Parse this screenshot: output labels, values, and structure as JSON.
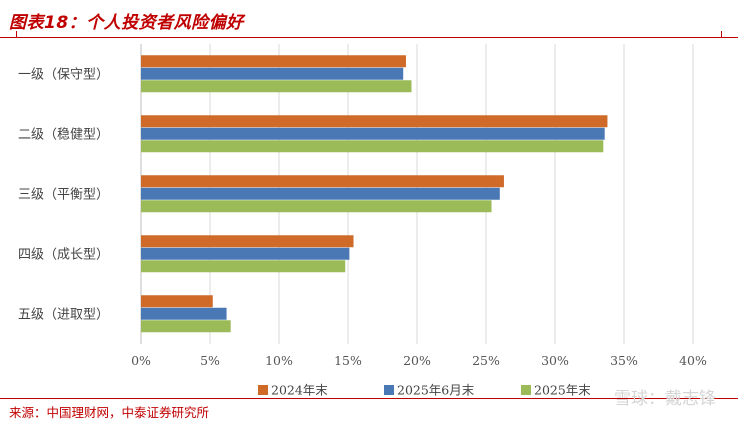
{
  "header": {
    "title": "图表18：个人投资者风险偏好"
  },
  "footer": {
    "source": "来源：中国理财网，中泰证券研究所",
    "watermark": "雪球：戴志锋"
  },
  "colors": {
    "brand_red": "#c00000",
    "series": [
      "#d06a29",
      "#4a78b4",
      "#9bbb59"
    ]
  },
  "chart_data": {
    "type": "bar",
    "orientation": "horizontal",
    "categories": [
      "一级（保守型）",
      "二级（稳健型）",
      "三级（平衡型）",
      "四级（成长型）",
      "五级（进取型）"
    ],
    "series": [
      {
        "name": "2024年末",
        "values": [
          19.2,
          33.8,
          26.3,
          15.4,
          5.2
        ]
      },
      {
        "name": "2025年6月末",
        "values": [
          19.0,
          33.6,
          26.0,
          15.1,
          6.2
        ]
      },
      {
        "name": "2025年末",
        "values": [
          19.6,
          33.5,
          25.4,
          14.8,
          6.5
        ]
      }
    ],
    "xlim": [
      0,
      40
    ],
    "xticks": [
      0,
      5,
      10,
      15,
      20,
      25,
      30,
      35,
      40
    ],
    "xtick_format": "percent",
    "xtick_labels": [
      "0%",
      "5%",
      "10%",
      "15%",
      "20%",
      "25%",
      "30%",
      "35%",
      "40%"
    ],
    "grid": true,
    "legend": "bottom"
  }
}
